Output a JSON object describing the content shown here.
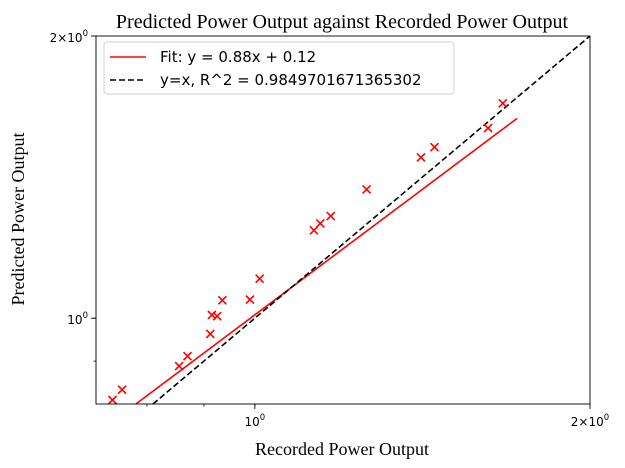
{
  "chart_data": {
    "type": "scatter",
    "title": "Predicted Power Output against Recorded Power Output",
    "xlabel": "Recorded Power Output",
    "ylabel": "Predicted Power Output",
    "xscale": "log",
    "yscale": "log",
    "xlim": [
      0.72,
      2.0
    ],
    "ylim": [
      0.81,
      2.0
    ],
    "x_tick_labels": [
      {
        "value": 1.0,
        "label": "10^0"
      },
      {
        "value": 2.0,
        "label": "2×10^0"
      }
    ],
    "y_tick_labels": [
      {
        "value": 1.0,
        "label": "10^0"
      },
      {
        "value": 2.0,
        "label": "2×10^0"
      }
    ],
    "x_minor_ticks": [
      0.8,
      0.9,
      1.0
    ],
    "y_minor_ticks": [
      0.9,
      1.0
    ],
    "legend_position": "upper-left",
    "series": [
      {
        "name": "Fit: y = 0.88x + 0.12",
        "kind": "line",
        "color": "#ff0000",
        "slope": 0.88,
        "intercept": 0.12,
        "x": [
          0.74,
          1.72
        ]
      },
      {
        "name": "y=x, R^2 = 0.9849701671365302",
        "kind": "line",
        "color": "#000000",
        "dash": "dashed",
        "x": [
          0.81,
          2.0
        ],
        "y": [
          0.81,
          2.0
        ]
      },
      {
        "name": "",
        "kind": "scatter",
        "marker": "x",
        "color": "#ff0000",
        "x": [
          0.745,
          0.76,
          0.855,
          0.87,
          0.912,
          0.915,
          0.925,
          0.935,
          0.99,
          1.01,
          1.13,
          1.145,
          1.17,
          1.26,
          1.41,
          1.45,
          1.62,
          1.67
        ],
        "y": [
          0.818,
          0.839,
          0.889,
          0.911,
          0.962,
          1.008,
          1.005,
          1.045,
          1.047,
          1.102,
          1.241,
          1.262,
          1.285,
          1.372,
          1.484,
          1.522,
          1.595,
          1.695
        ]
      }
    ]
  }
}
